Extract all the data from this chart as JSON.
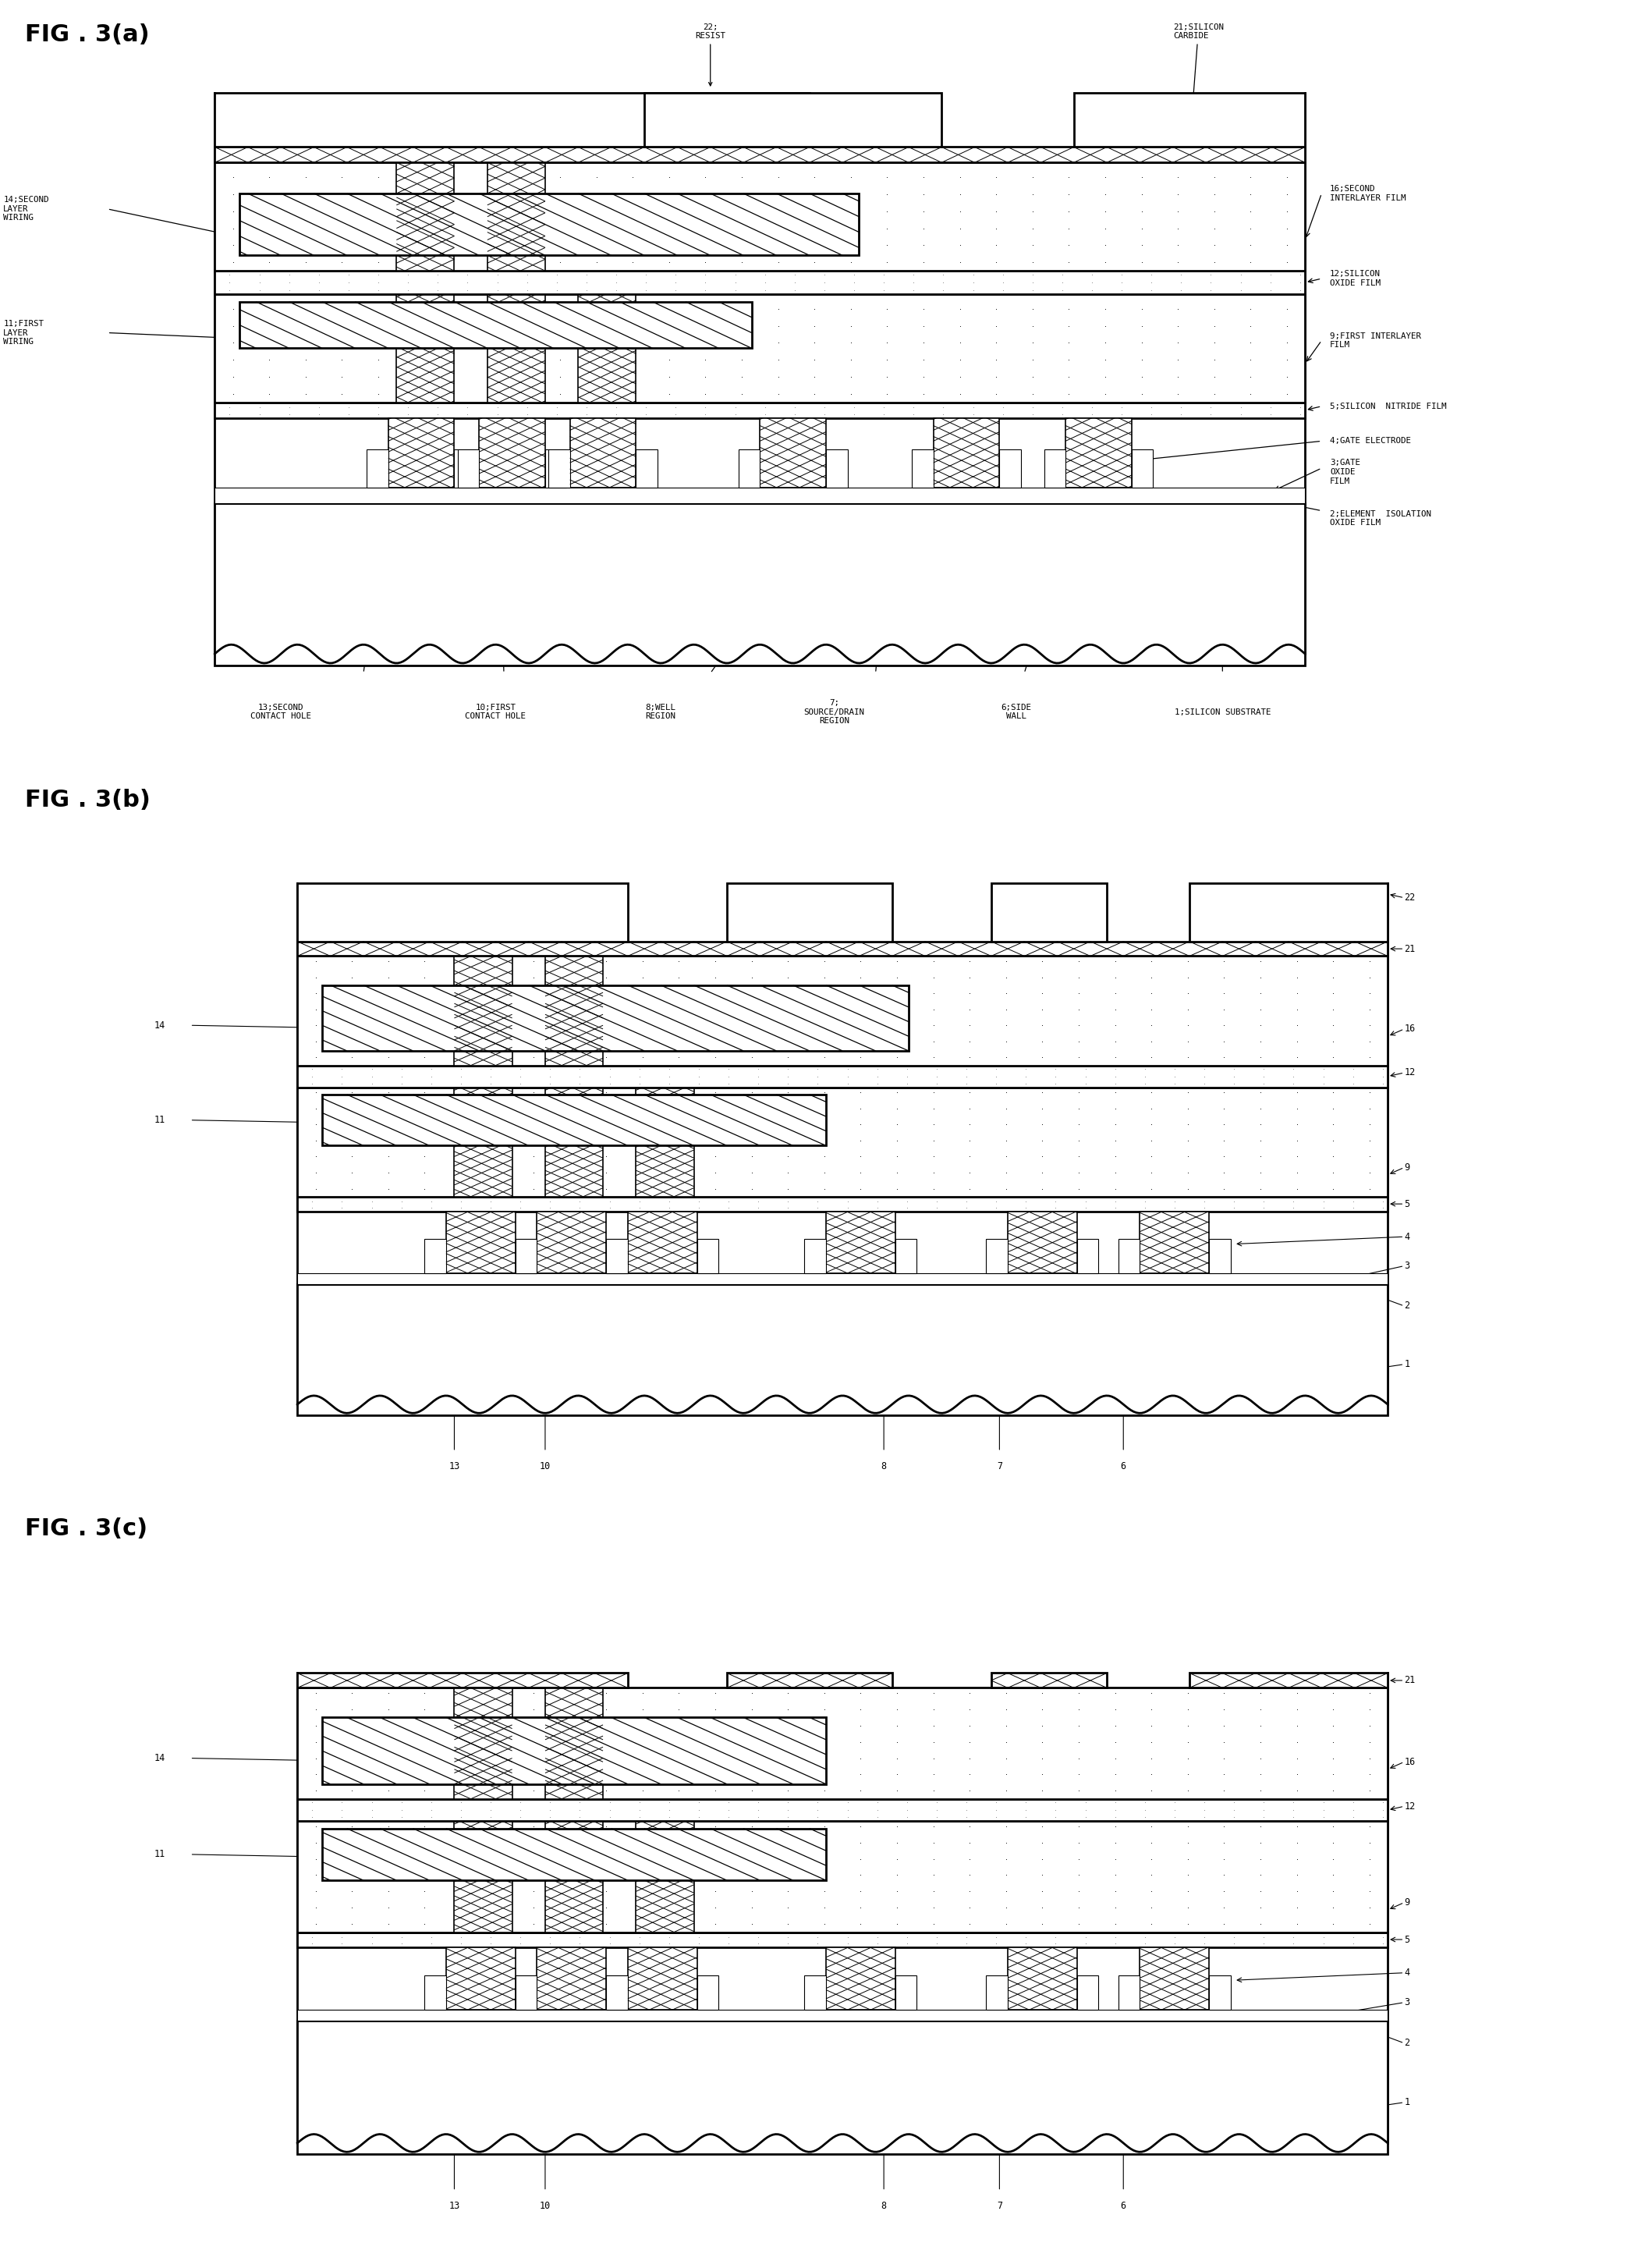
{
  "fig_a_title": "FIG . 3(a)",
  "fig_b_title": "FIG . 3(b)",
  "fig_c_title": "FIG . 3(c)",
  "bg_color": "#ffffff",
  "line_color": "#000000"
}
